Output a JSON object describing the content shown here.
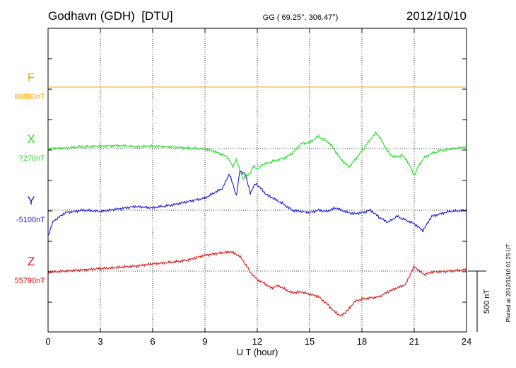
{
  "header": {
    "station": "Godhavn (GDH)  [DTU]",
    "coords": "GG ( 69.25°, 306.47°)",
    "date": "2012/10/10"
  },
  "footer": {
    "plotted": "Plotted at 2012/11/10 01:25 UT"
  },
  "chart_data": {
    "type": "line",
    "xlabel": "U T (hour)",
    "xlim": [
      0,
      24
    ],
    "xticks": [
      "0",
      "3",
      "6",
      "9",
      "12",
      "15",
      "18",
      "21",
      "24"
    ],
    "scale_bar": {
      "label": "500 nT",
      "value": 500
    },
    "series": [
      {
        "name": "F",
        "baseline_label": "88880nT",
        "baseline": 88880,
        "color": "#f5a800",
        "x": [
          0,
          24
        ],
        "y": [
          88880,
          88880
        ]
      },
      {
        "name": "X",
        "baseline_label": "7270nT",
        "baseline": 7270,
        "color": "#22dd22",
        "x": [
          0,
          1,
          2,
          3,
          4,
          5,
          6,
          7,
          8,
          9,
          9.5,
          10,
          10.3,
          10.6,
          10.8,
          11.0,
          11.2,
          11.4,
          11.6,
          11.8,
          12.0,
          12.3,
          12.6,
          13,
          13.5,
          14,
          14.5,
          15,
          15.5,
          16,
          16.3,
          16.6,
          17,
          17.3,
          17.6,
          18,
          18.4,
          18.8,
          19,
          19.3,
          19.6,
          20,
          20.3,
          20.6,
          21,
          21.3,
          21.6,
          22,
          22.5,
          23,
          23.5,
          24
        ],
        "y": [
          7270,
          7275,
          7285,
          7290,
          7295,
          7285,
          7290,
          7285,
          7275,
          7265,
          7250,
          7220,
          7200,
          7120,
          7180,
          7090,
          7020,
          7050,
          7070,
          7130,
          7100,
          7140,
          7150,
          7170,
          7190,
          7230,
          7310,
          7320,
          7370,
          7330,
          7290,
          7220,
          7150,
          7120,
          7180,
          7250,
          7330,
          7400,
          7370,
          7290,
          7220,
          7200,
          7220,
          7170,
          7050,
          7140,
          7200,
          7230,
          7255,
          7265,
          7275,
          7280
        ]
      },
      {
        "name": "Y",
        "baseline_label": "-5100nT",
        "baseline": -5100,
        "color": "#1a1ad9",
        "x": [
          0,
          0.3,
          1,
          2,
          3,
          4,
          5,
          6,
          7,
          8,
          9,
          9.5,
          10,
          10.4,
          10.8,
          11,
          11.3,
          11.6,
          11.9,
          12.2,
          12.5,
          13,
          13.5,
          14,
          14.5,
          15,
          15.5,
          16,
          16.5,
          17,
          17.5,
          18,
          18.5,
          19,
          19.5,
          20,
          20.5,
          21,
          21.5,
          22,
          23,
          24
        ],
        "y": [
          -5310,
          -5190,
          -5120,
          -5100,
          -5110,
          -5090,
          -5070,
          -5080,
          -5060,
          -5030,
          -5000,
          -4960,
          -4920,
          -4800,
          -4980,
          -4780,
          -4800,
          -4960,
          -4880,
          -4920,
          -4970,
          -5010,
          -5050,
          -5100,
          -5110,
          -5120,
          -5100,
          -5110,
          -5080,
          -5110,
          -5130,
          -5120,
          -5100,
          -5160,
          -5200,
          -5150,
          -5180,
          -5210,
          -5270,
          -5150,
          -5110,
          -5100
        ]
      },
      {
        "name": "Z",
        "baseline_label": "55790nT",
        "baseline": 55790,
        "color": "#e01010",
        "x": [
          0,
          1,
          2,
          3,
          4,
          5,
          6,
          7,
          8,
          9,
          9.5,
          10,
          10.5,
          11,
          11.3,
          11.6,
          12,
          12.4,
          12.8,
          13.2,
          13.6,
          14,
          14.5,
          15,
          15.5,
          16,
          16.4,
          16.8,
          17.2,
          17.6,
          18,
          18.5,
          19,
          19.5,
          20,
          20.5,
          21,
          21.3,
          21.6,
          22,
          23,
          24
        ],
        "y": [
          55780,
          55790,
          55800,
          55810,
          55820,
          55830,
          55850,
          55860,
          55880,
          55920,
          55930,
          55940,
          55950,
          55910,
          55850,
          55780,
          55720,
          55690,
          55650,
          55670,
          55640,
          55610,
          55620,
          55600,
          55580,
          55520,
          55460,
          55420,
          55470,
          55540,
          55560,
          55570,
          55580,
          55620,
          55650,
          55680,
          55830,
          55790,
          55760,
          55780,
          55790,
          55800
        ]
      }
    ]
  }
}
